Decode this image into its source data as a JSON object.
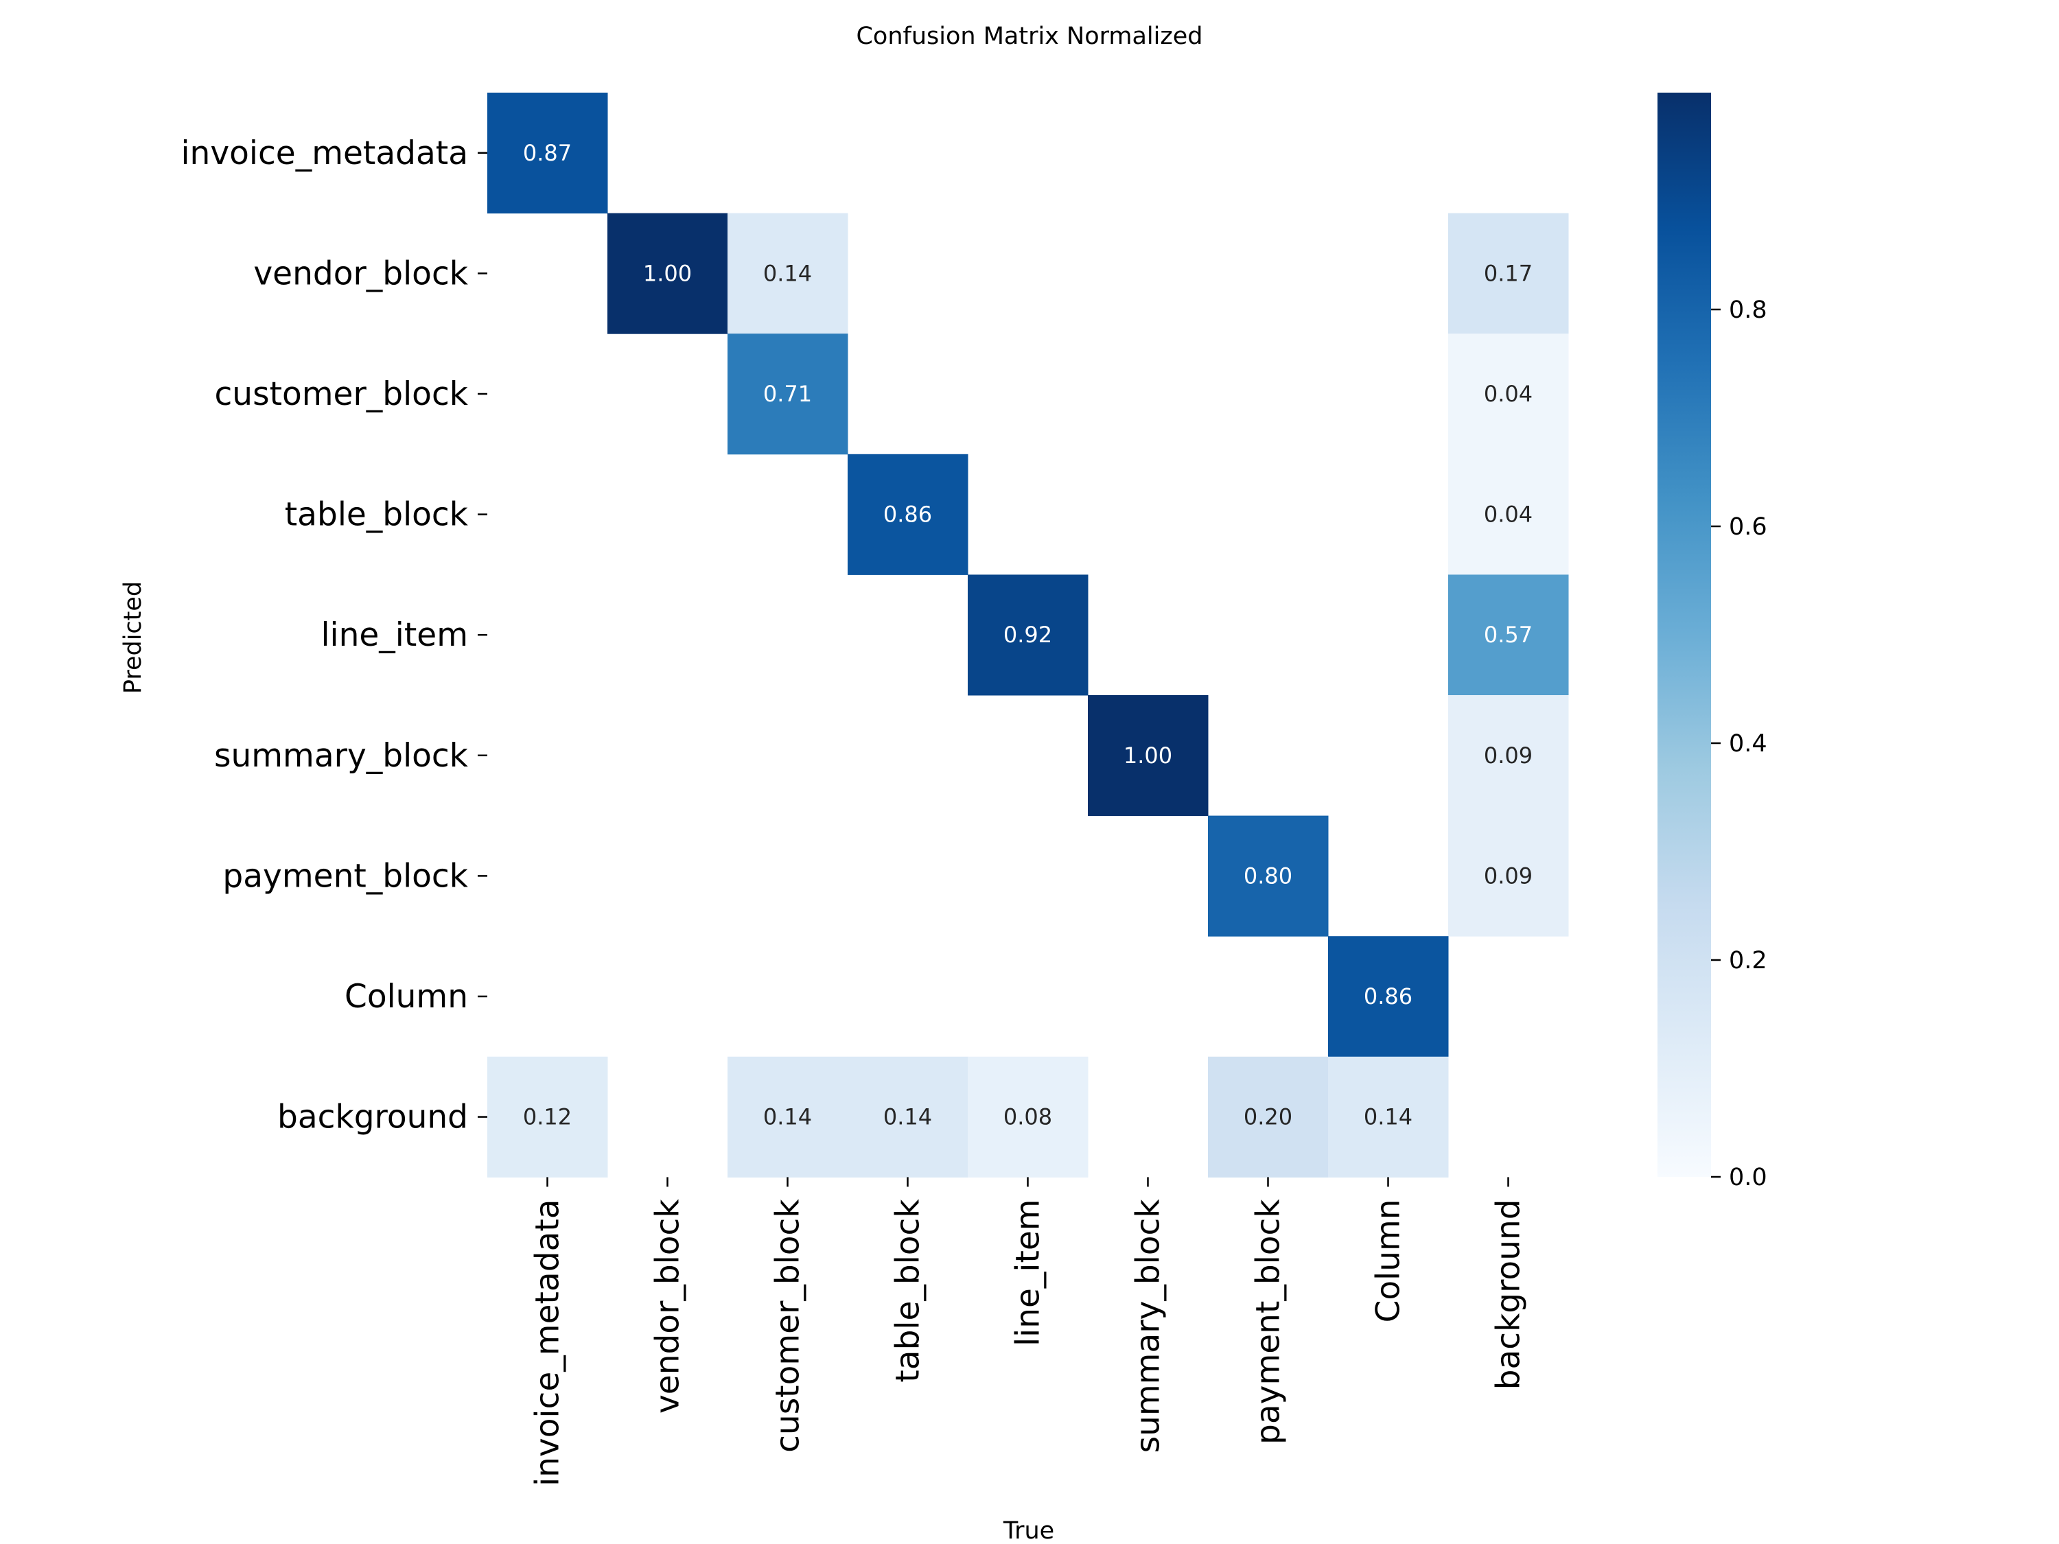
{
  "chart_data": {
    "type": "heatmap",
    "title": "Confusion Matrix Normalized",
    "xlabel": "True",
    "ylabel": "Predicted",
    "x_categories": [
      "invoice_metadata",
      "vendor_block",
      "customer_block",
      "table_block",
      "line_item",
      "summary_block",
      "payment_block",
      "Column",
      "background"
    ],
    "y_categories": [
      "invoice_metadata",
      "vendor_block",
      "customer_block",
      "table_block",
      "line_item",
      "summary_block",
      "payment_block",
      "Column",
      "background"
    ],
    "values": [
      [
        0.87,
        null,
        null,
        null,
        null,
        null,
        null,
        null,
        null
      ],
      [
        null,
        1.0,
        0.14,
        null,
        null,
        null,
        null,
        null,
        0.17
      ],
      [
        null,
        null,
        0.71,
        null,
        null,
        null,
        null,
        null,
        0.04
      ],
      [
        null,
        null,
        null,
        0.86,
        null,
        null,
        null,
        null,
        0.04
      ],
      [
        null,
        null,
        null,
        null,
        0.92,
        null,
        null,
        null,
        0.57
      ],
      [
        null,
        null,
        null,
        null,
        null,
        1.0,
        null,
        null,
        0.09
      ],
      [
        null,
        null,
        null,
        null,
        null,
        null,
        0.8,
        null,
        0.09
      ],
      [
        null,
        null,
        null,
        null,
        null,
        null,
        null,
        0.86,
        null
      ],
      [
        0.12,
        null,
        0.14,
        0.14,
        0.08,
        null,
        0.2,
        0.14,
        null
      ]
    ],
    "colormap": "Blues",
    "colorbar": {
      "range": [
        0,
        1
      ],
      "ticks": [
        "0.0",
        "0.2",
        "0.4",
        "0.6",
        "0.8"
      ]
    },
    "grid": false,
    "legend": "colorbar-right"
  }
}
